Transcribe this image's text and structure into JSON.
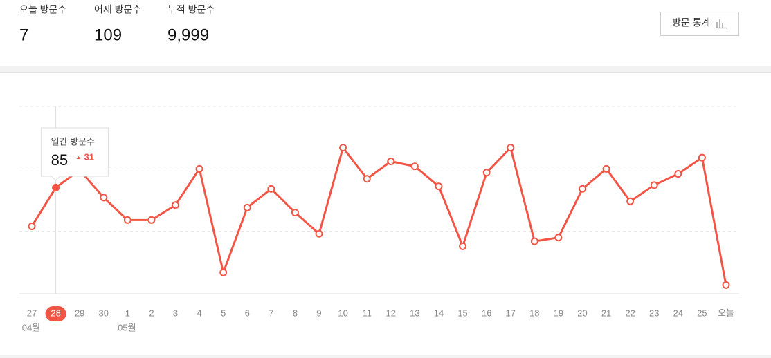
{
  "stats": [
    {
      "label": "오늘 방문수",
      "value": "7"
    },
    {
      "label": "어제 방문수",
      "value": "109"
    },
    {
      "label": "누적 방문수",
      "value": "9,999"
    }
  ],
  "button": "방문 통계",
  "chart_data": {
    "type": "line",
    "categories": [
      "27",
      "28",
      "29",
      "30",
      "1",
      "2",
      "3",
      "4",
      "5",
      "6",
      "7",
      "8",
      "9",
      "10",
      "11",
      "12",
      "13",
      "14",
      "15",
      "16",
      "17",
      "18",
      "19",
      "20",
      "21",
      "22",
      "23",
      "24",
      "25",
      "오늘"
    ],
    "month_labels": [
      "04월",
      null,
      null,
      null,
      "05월",
      null,
      null,
      null,
      null,
      null,
      null,
      null,
      null,
      null,
      null,
      null,
      null,
      null,
      null,
      null,
      null,
      null,
      null,
      null,
      null,
      null,
      null,
      null,
      null,
      null
    ],
    "series": [
      {
        "name": "일간 방문수",
        "color": "#f25545",
        "values": [
          54,
          85,
          99,
          77,
          59,
          59,
          71,
          100,
          17,
          69,
          84,
          65,
          48,
          117,
          92,
          106,
          102,
          86,
          38,
          97,
          117,
          42,
          45,
          84,
          100,
          74,
          87,
          96,
          109,
          7
        ]
      }
    ],
    "ylim": [
      0,
      150
    ],
    "yticks": [
      0,
      50,
      100,
      150
    ],
    "grid": true,
    "selected_index": 1,
    "tooltip": {
      "title": "일간 방문수",
      "change": 31
    }
  }
}
